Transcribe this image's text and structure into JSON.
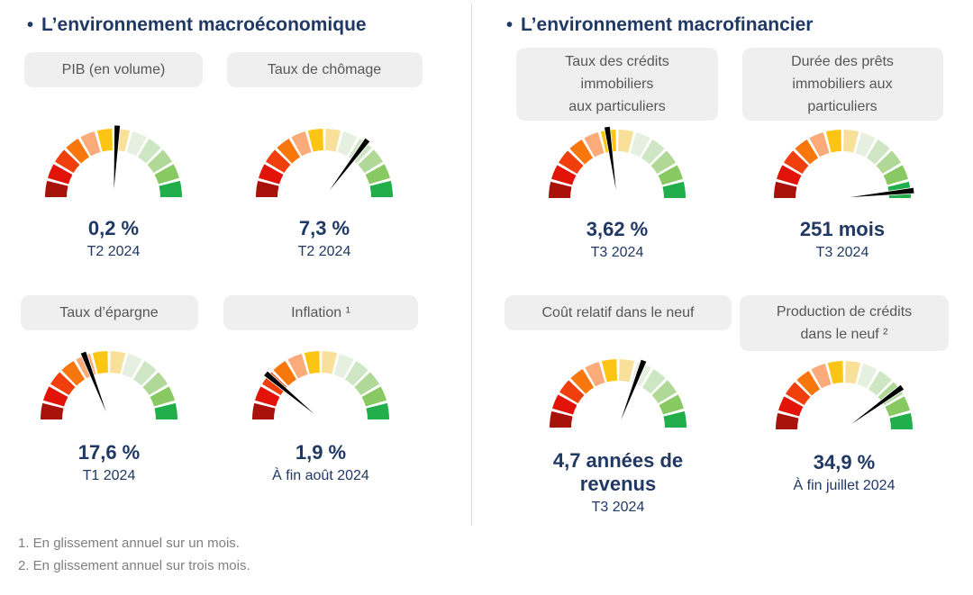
{
  "colors": {
    "title_navy": "#1F3864",
    "value_navy": "#1F3864",
    "pill_bg": "#EFEFEF",
    "pill_text": "#575757",
    "footnote_gray": "#7F7F7F",
    "divider_gray": "#D9D9D9",
    "needle_black": "#000000"
  },
  "gauge_segments": [
    "#A8120B",
    "#E21309",
    "#F03F0C",
    "#F8770D",
    "#FBAB79",
    "#FDC513",
    "#F9E09A",
    "#E6F0E0",
    "#CFE6C4",
    "#B0D897",
    "#89C963",
    "#22AE4B"
  ],
  "sections": [
    {
      "bullet": "•",
      "title": "L’environnement macroéconomique",
      "gauges": [
        {
          "label": "PIB (en volume)",
          "value": "0,2 %",
          "period": "T2 2024",
          "needle_deg": 3
        },
        {
          "label": "Taux de chômage",
          "value": "7,3 %",
          "period": "T2 2024",
          "needle_deg": 37
        },
        {
          "label": "Taux d’épargne",
          "value": "17,6 %",
          "period": "T1 2024",
          "needle_deg": -21
        },
        {
          "label": "Inflation ¹",
          "value": "1,9 %",
          "period": "À fin août 2024",
          "needle_deg": -50
        }
      ]
    },
    {
      "bullet": "•",
      "title": "L’environnement macrofinancier",
      "gauges": [
        {
          "label": "Taux des crédits\nimmobiliers\naux particuliers",
          "value": "3,62 %",
          "period": "T3 2024",
          "needle_deg": -8
        },
        {
          "label": "Durée des prêts\nimmobiliers aux\nparticuliers",
          "value": "251 mois",
          "period": "T3 2024",
          "needle_deg": 84
        },
        {
          "label": "Coût relatif dans le neuf",
          "value": "4,7 années de\nrevenus",
          "period": "T3 2024",
          "needle_deg": 21
        },
        {
          "label": "Production de crédits\ndans le neuf ²",
          "value": "34,9 %",
          "period": "À fin juillet 2024",
          "needle_deg": 54
        }
      ]
    }
  ],
  "footnotes": [
    "1. En glissement annuel sur un mois.",
    "2. En glissement annuel sur trois mois."
  ],
  "chart_data": [
    {
      "type": "gauge",
      "section": "L’environnement macroéconomique",
      "title": "PIB (en volume)",
      "value": 0.2,
      "unit": "%",
      "display_value": "0,2 %",
      "period": "T2 2024",
      "needle_angle_deg_from_vertical": 3,
      "scale": "demi-cercle 180°, 12 segments rouge (gauche) → vert (droite)"
    },
    {
      "type": "gauge",
      "section": "L’environnement macroéconomique",
      "title": "Taux de chômage",
      "value": 7.3,
      "unit": "%",
      "display_value": "7,3 %",
      "period": "T2 2024",
      "needle_angle_deg_from_vertical": 37,
      "scale": "demi-cercle 180°, 12 segments rouge → vert"
    },
    {
      "type": "gauge",
      "section": "L’environnement macroéconomique",
      "title": "Taux d’épargne",
      "value": 17.6,
      "unit": "%",
      "display_value": "17,6 %",
      "period": "T1 2024",
      "needle_angle_deg_from_vertical": -21,
      "scale": "demi-cercle 180°, 12 segments rouge → vert"
    },
    {
      "type": "gauge",
      "section": "L’environnement macroéconomique",
      "title": "Inflation",
      "footnote_ref": 1,
      "value": 1.9,
      "unit": "%",
      "display_value": "1,9 %",
      "period": "À fin août 2024",
      "needle_angle_deg_from_vertical": -50,
      "scale": "demi-cercle 180°, 12 segments rouge → vert"
    },
    {
      "type": "gauge",
      "section": "L’environnement macrofinancier",
      "title": "Taux des crédits immobiliers aux particuliers",
      "value": 3.62,
      "unit": "%",
      "display_value": "3,62 %",
      "period": "T3 2024",
      "needle_angle_deg_from_vertical": -8,
      "scale": "demi-cercle 180°, 12 segments rouge → vert"
    },
    {
      "type": "gauge",
      "section": "L’environnement macrofinancier",
      "title": "Durée des prêts immobiliers aux particuliers",
      "value": 251,
      "unit": "mois",
      "display_value": "251 mois",
      "period": "T3 2024",
      "needle_angle_deg_from_vertical": 84,
      "scale": "demi-cercle 180°, 12 segments rouge → vert"
    },
    {
      "type": "gauge",
      "section": "L’environnement macrofinancier",
      "title": "Coût relatif dans le neuf",
      "value": 4.7,
      "unit": "années de revenus",
      "display_value": "4,7 années de revenus",
      "period": "T3 2024",
      "needle_angle_deg_from_vertical": 21,
      "scale": "demi-cercle 180°, 12 segments rouge → vert"
    },
    {
      "type": "gauge",
      "section": "L’environnement macrofinancier",
      "title": "Production de crédits dans le neuf",
      "footnote_ref": 2,
      "value": 34.9,
      "unit": "%",
      "display_value": "34,9 %",
      "period": "À fin juillet 2024",
      "needle_angle_deg_from_vertical": 54,
      "scale": "demi-cercle 180°, 12 segments rouge → vert"
    }
  ]
}
